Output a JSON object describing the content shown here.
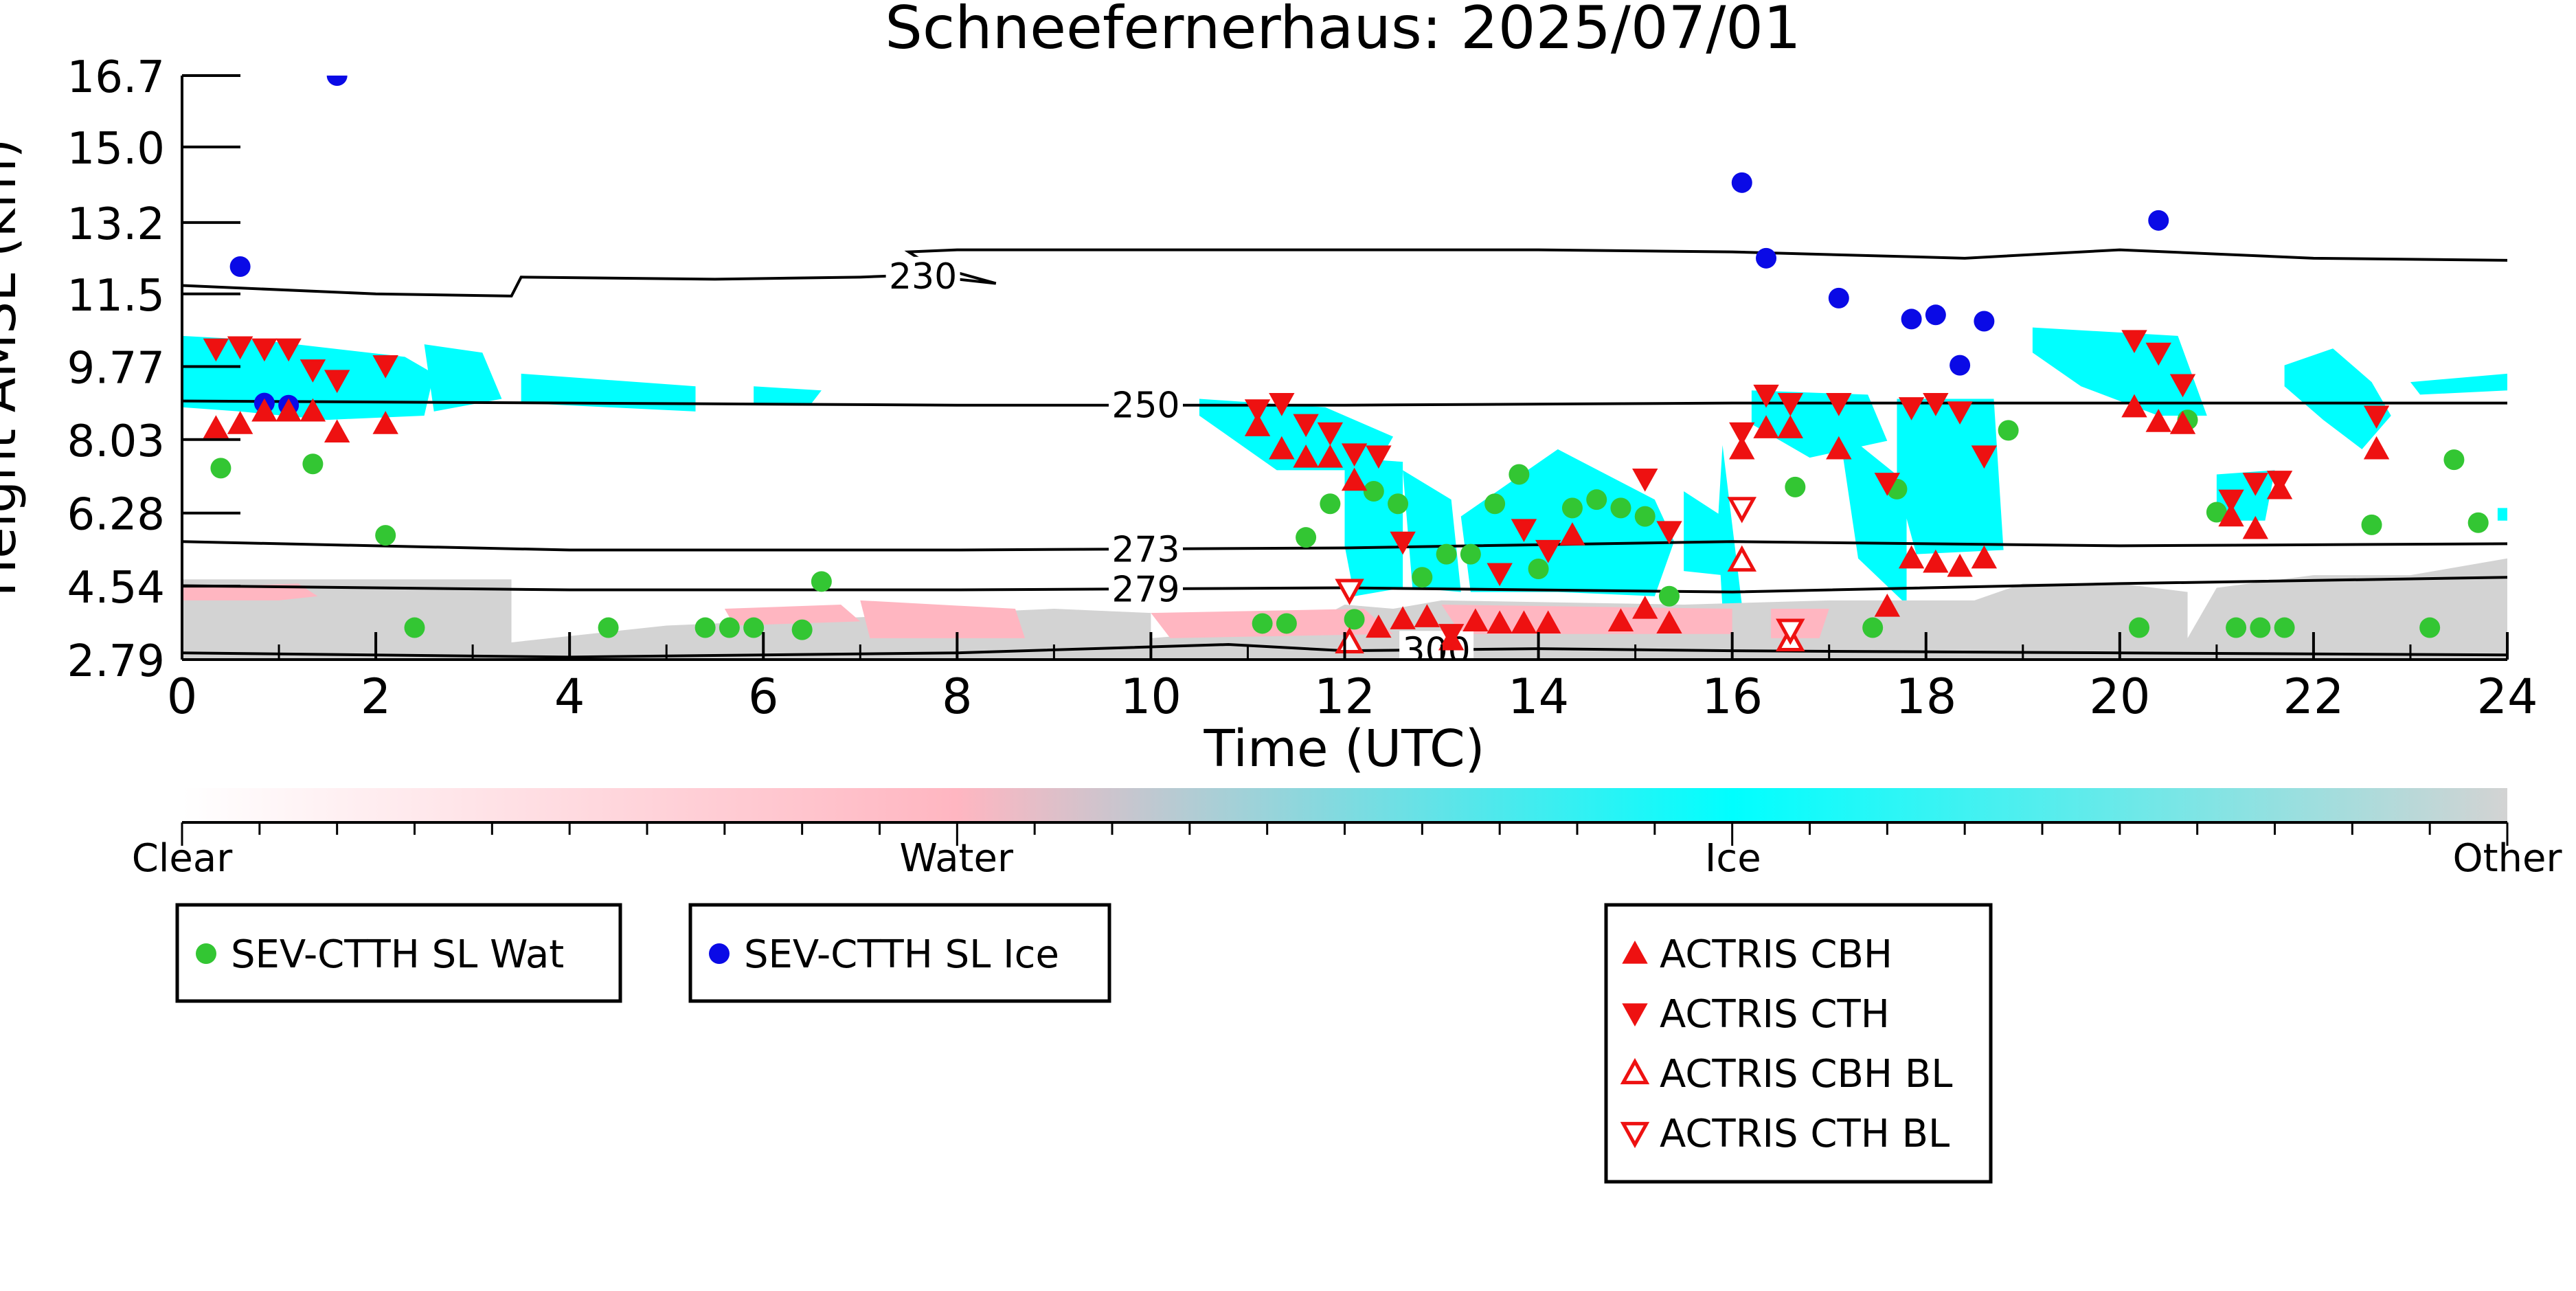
{
  "chart_data": {
    "type": "scatter",
    "title": "Schneefernerhaus: 2025/07/01",
    "xlabel": "Time (UTC)",
    "ylabel": "Height AMSL (km)",
    "xlim": [
      0,
      24
    ],
    "ylim": [
      2.79,
      16.7
    ],
    "x_ticks": [
      "0",
      "2",
      "4",
      "6",
      "8",
      "10",
      "12",
      "14",
      "16",
      "18",
      "20",
      "22",
      "24"
    ],
    "y_ticks": [
      "2.79",
      "4.54",
      "6.28",
      "8.03",
      "9.77",
      "11.5",
      "13.2",
      "15.0",
      "16.7"
    ],
    "grid": false,
    "contours": [
      {
        "label": "230",
        "label_x": 7.3,
        "points": [
          [
            0,
            11.7
          ],
          [
            2,
            11.5
          ],
          [
            3.4,
            11.45
          ],
          [
            3.5,
            11.9
          ],
          [
            5.5,
            11.85
          ],
          [
            7,
            11.9
          ],
          [
            7.6,
            11.95
          ],
          [
            8.4,
            11.75
          ],
          [
            7.7,
            12.2
          ],
          [
            7.5,
            12.5
          ],
          [
            8,
            12.55
          ],
          [
            10,
            12.55
          ],
          [
            12,
            12.55
          ],
          [
            14,
            12.55
          ],
          [
            16,
            12.5
          ],
          [
            18.4,
            12.35
          ],
          [
            20,
            12.55
          ],
          [
            22,
            12.35
          ],
          [
            24,
            12.3
          ]
        ]
      },
      {
        "label": "250",
        "label_x": 9.6,
        "points": [
          [
            0,
            8.95
          ],
          [
            4,
            8.9
          ],
          [
            8,
            8.85
          ],
          [
            12,
            8.85
          ],
          [
            16,
            8.9
          ],
          [
            20,
            8.9
          ],
          [
            24,
            8.9
          ]
        ]
      },
      {
        "label": "273",
        "label_x": 9.6,
        "points": [
          [
            0,
            5.6
          ],
          [
            4,
            5.4
          ],
          [
            8,
            5.4
          ],
          [
            12,
            5.45
          ],
          [
            16,
            5.6
          ],
          [
            20,
            5.5
          ],
          [
            24,
            5.55
          ]
        ]
      },
      {
        "label": "279",
        "label_x": 9.6,
        "points": [
          [
            0,
            4.55
          ],
          [
            4,
            4.45
          ],
          [
            8,
            4.45
          ],
          [
            12,
            4.5
          ],
          [
            16,
            4.4
          ],
          [
            20,
            4.6
          ],
          [
            24,
            4.75
          ]
        ]
      },
      {
        "label": "300",
        "label_x": 12.6,
        "points": [
          [
            0,
            2.95
          ],
          [
            4,
            2.85
          ],
          [
            8,
            2.95
          ],
          [
            10.8,
            3.15
          ],
          [
            12,
            3.0
          ],
          [
            14,
            3.05
          ],
          [
            16,
            3.0
          ],
          [
            20,
            2.95
          ],
          [
            24,
            2.9
          ]
        ]
      }
    ],
    "fill_regions": [
      {
        "category": "Ice",
        "points": [
          [
            0,
            10.5
          ],
          [
            0.8,
            10.4
          ],
          [
            2.3,
            10.0
          ],
          [
            2.6,
            9.6
          ],
          [
            2.5,
            8.6
          ],
          [
            1.5,
            8.5
          ],
          [
            0.6,
            8.7
          ],
          [
            0,
            8.8
          ]
        ]
      },
      {
        "category": "Ice",
        "points": [
          [
            2.5,
            10.3
          ],
          [
            3.1,
            10.1
          ],
          [
            3.3,
            9.0
          ],
          [
            2.6,
            8.7
          ]
        ]
      },
      {
        "category": "Ice",
        "points": [
          [
            3.5,
            9.6
          ],
          [
            5.3,
            9.3
          ],
          [
            5.3,
            8.7
          ],
          [
            3.5,
            8.9
          ]
        ]
      },
      {
        "category": "Ice",
        "points": [
          [
            5.9,
            9.3
          ],
          [
            6.6,
            9.2
          ],
          [
            6.5,
            8.9
          ],
          [
            5.9,
            8.9
          ]
        ]
      },
      {
        "category": "Ice",
        "points": [
          [
            10.5,
            9.0
          ],
          [
            11.8,
            8.8
          ],
          [
            12.5,
            8.1
          ],
          [
            12.3,
            7.3
          ],
          [
            11.3,
            7.3
          ],
          [
            10.5,
            8.6
          ]
        ]
      },
      {
        "category": "Ice",
        "points": [
          [
            12.0,
            7.6
          ],
          [
            12.6,
            7.5
          ],
          [
            12.6,
            4.5
          ],
          [
            12.1,
            4.3
          ],
          [
            12.0,
            5.5
          ]
        ]
      },
      {
        "category": "Ice",
        "points": [
          [
            12.6,
            7.3
          ],
          [
            13.1,
            6.6
          ],
          [
            13.2,
            4.4
          ],
          [
            12.7,
            4.5
          ]
        ]
      },
      {
        "category": "Ice",
        "points": [
          [
            13.2,
            6.2
          ],
          [
            14.2,
            7.8
          ],
          [
            15.2,
            6.6
          ],
          [
            15.4,
            5.6
          ],
          [
            15.2,
            4.3
          ],
          [
            14.2,
            4.4
          ],
          [
            13.3,
            4.4
          ]
        ]
      },
      {
        "category": "Ice",
        "points": [
          [
            15.5,
            6.8
          ],
          [
            15.9,
            6.2
          ],
          [
            15.9,
            4.8
          ],
          [
            15.5,
            4.9
          ]
        ]
      },
      {
        "category": "Ice",
        "points": [
          [
            15.9,
            7.9
          ],
          [
            16.1,
            4.1
          ],
          [
            15.9,
            4.0
          ],
          [
            15.85,
            6.0
          ]
        ]
      },
      {
        "category": "Ice",
        "points": [
          [
            16.2,
            9.2
          ],
          [
            17.4,
            9.1
          ],
          [
            17.6,
            8.0
          ],
          [
            16.8,
            7.6
          ],
          [
            16.2,
            8.4
          ]
        ]
      },
      {
        "category": "Ice",
        "points": [
          [
            17.1,
            8.3
          ],
          [
            17.3,
            5.2
          ],
          [
            17.8,
            4.1
          ],
          [
            17.8,
            7.0
          ]
        ]
      },
      {
        "category": "Ice",
        "points": [
          [
            17.7,
            9.0
          ],
          [
            18.7,
            9.0
          ],
          [
            18.8,
            5.4
          ],
          [
            17.9,
            5.3
          ],
          [
            17.7,
            7.0
          ]
        ]
      },
      {
        "category": "Ice",
        "points": [
          [
            19.1,
            10.7
          ],
          [
            20.6,
            10.5
          ],
          [
            20.9,
            8.6
          ],
          [
            20.4,
            8.6
          ],
          [
            19.6,
            9.3
          ],
          [
            19.1,
            10.1
          ]
        ]
      },
      {
        "category": "Ice",
        "points": [
          [
            21.0,
            7.2
          ],
          [
            21.6,
            7.3
          ],
          [
            21.5,
            6.1
          ],
          [
            21.0,
            6.1
          ]
        ]
      },
      {
        "category": "Ice",
        "points": [
          [
            21.7,
            9.8
          ],
          [
            22.2,
            10.2
          ],
          [
            22.6,
            9.4
          ],
          [
            22.8,
            8.6
          ],
          [
            22.5,
            7.8
          ],
          [
            22.1,
            8.5
          ],
          [
            21.7,
            9.3
          ]
        ]
      },
      {
        "category": "Ice",
        "points": [
          [
            23.0,
            9.4
          ],
          [
            24,
            9.6
          ],
          [
            24,
            9.2
          ],
          [
            23.1,
            9.1
          ]
        ]
      },
      {
        "category": "Ice",
        "points": [
          [
            23.9,
            6.4
          ],
          [
            24,
            6.4
          ],
          [
            24,
            6.1
          ],
          [
            23.9,
            6.1
          ]
        ]
      },
      {
        "category": "Other",
        "points": [
          [
            0,
            4.7
          ],
          [
            3.4,
            4.7
          ],
          [
            3.4,
            3.2
          ],
          [
            5.0,
            3.6
          ],
          [
            9.0,
            4.0
          ],
          [
            10.0,
            3.9
          ],
          [
            10.0,
            3.3
          ],
          [
            11.6,
            3.6
          ],
          [
            12.0,
            4.1
          ],
          [
            12.5,
            4.0
          ],
          [
            13.0,
            4.2
          ],
          [
            15.5,
            4.1
          ],
          [
            17.0,
            4.2
          ],
          [
            18.5,
            4.2
          ],
          [
            19.0,
            4.6
          ],
          [
            20.0,
            4.6
          ],
          [
            20.7,
            4.4
          ],
          [
            20.7,
            3.3
          ],
          [
            21.0,
            4.5
          ],
          [
            22.0,
            4.8
          ],
          [
            23.0,
            4.8
          ],
          [
            24,
            5.2
          ],
          [
            24,
            2.79
          ],
          [
            0,
            2.79
          ]
        ]
      },
      {
        "category": "Water",
        "points": [
          [
            0,
            4.5
          ],
          [
            1.2,
            4.6
          ],
          [
            1.4,
            4.3
          ],
          [
            1.0,
            4.2
          ],
          [
            0,
            4.2
          ]
        ]
      },
      {
        "category": "Water",
        "points": [
          [
            5.6,
            4.0
          ],
          [
            6.8,
            4.1
          ],
          [
            7.0,
            3.7
          ],
          [
            5.7,
            3.6
          ]
        ]
      },
      {
        "category": "Water",
        "points": [
          [
            7.0,
            4.2
          ],
          [
            8.6,
            4.0
          ],
          [
            8.7,
            3.3
          ],
          [
            7.1,
            3.3
          ]
        ]
      },
      {
        "category": "Water",
        "points": [
          [
            10.0,
            3.9
          ],
          [
            12.2,
            4.0
          ],
          [
            12.5,
            3.4
          ],
          [
            10.2,
            3.3
          ]
        ]
      },
      {
        "category": "Water",
        "points": [
          [
            13.0,
            4.1
          ],
          [
            16.0,
            4.0
          ],
          [
            16.0,
            3.4
          ],
          [
            13.2,
            3.4
          ]
        ]
      },
      {
        "category": "Water",
        "points": [
          [
            16.4,
            4.0
          ],
          [
            17.0,
            4.0
          ],
          [
            16.9,
            3.3
          ],
          [
            16.4,
            3.3
          ]
        ]
      }
    ],
    "series": [
      {
        "name": "SEV-CTTH SL Wat",
        "marker": "circle",
        "color": "#33c633",
        "x": [
          0.4,
          1.35,
          2.1,
          2.4,
          4.4,
          5.4,
          5.65,
          5.9,
          6.4,
          6.6,
          11.15,
          11.4,
          11.6,
          11.85,
          12.1,
          12.3,
          12.55,
          12.8,
          13.05,
          13.3,
          13.55,
          13.8,
          14.0,
          14.35,
          14.6,
          14.85,
          15.1,
          15.35,
          16.65,
          17.45,
          17.7,
          18.85,
          20.2,
          20.7,
          21.0,
          21.2,
          21.45,
          21.7,
          22.6,
          23.2,
          23.45,
          23.7
        ],
        "y": [
          7.35,
          7.45,
          5.75,
          3.55,
          3.55,
          3.55,
          3.55,
          3.55,
          3.5,
          4.65,
          3.65,
          3.65,
          5.7,
          6.5,
          3.75,
          6.8,
          6.5,
          4.75,
          5.3,
          5.3,
          6.5,
          7.2,
          4.95,
          6.4,
          6.6,
          6.4,
          6.2,
          4.3,
          6.9,
          3.55,
          6.85,
          8.25,
          3.55,
          8.5,
          6.3,
          3.55,
          3.55,
          3.55,
          6.0,
          3.55,
          7.55,
          6.05
        ]
      },
      {
        "name": "SEV-CTTH SL Ice",
        "marker": "circle",
        "color": "#0a0ae6",
        "x": [
          0.6,
          0.85,
          1.1,
          1.6,
          16.1,
          16.35,
          17.1,
          17.85,
          18.1,
          18.35,
          18.6,
          20.4
        ],
        "y": [
          12.15,
          8.9,
          8.85,
          16.7,
          14.15,
          12.35,
          11.4,
          10.9,
          11.0,
          9.8,
          10.85,
          13.25
        ]
      },
      {
        "name": "ACTRIS CBH",
        "marker": "triangle-up",
        "color": "#ee1111",
        "x": [
          0.35,
          0.6,
          0.85,
          1.1,
          1.35,
          1.6,
          2.1,
          11.1,
          11.35,
          11.6,
          11.85,
          12.1,
          12.35,
          12.6,
          12.85,
          13.1,
          13.35,
          13.6,
          13.85,
          14.1,
          14.35,
          14.85,
          15.1,
          15.35,
          16.1,
          16.35,
          16.6,
          17.1,
          17.6,
          17.85,
          18.1,
          18.35,
          18.6,
          20.15,
          20.4,
          20.65,
          21.15,
          21.4,
          21.65,
          22.65
        ],
        "y": [
          8.3,
          8.4,
          8.7,
          8.7,
          8.7,
          8.2,
          8.4,
          8.35,
          7.8,
          7.6,
          7.6,
          7.05,
          3.55,
          3.75,
          3.8,
          3.25,
          3.7,
          3.65,
          3.65,
          3.65,
          5.75,
          3.7,
          4.0,
          3.65,
          7.8,
          8.3,
          8.3,
          7.8,
          4.05,
          5.2,
          5.1,
          5.0,
          5.2,
          8.8,
          8.45,
          8.4,
          6.2,
          5.9,
          6.85,
          7.8
        ]
      },
      {
        "name": "ACTRIS CTH",
        "marker": "triangle-down",
        "color": "#ee1111",
        "x": [
          0.35,
          0.6,
          0.85,
          1.1,
          1.35,
          1.6,
          2.1,
          11.1,
          11.35,
          11.6,
          11.85,
          12.1,
          12.35,
          12.6,
          13.1,
          13.6,
          13.85,
          14.1,
          15.1,
          15.35,
          16.1,
          16.35,
          16.6,
          17.1,
          17.6,
          17.85,
          18.1,
          18.35,
          18.6,
          20.15,
          20.4,
          20.65,
          21.15,
          21.4,
          21.65,
          22.65
        ],
        "y": [
          10.2,
          10.25,
          10.2,
          10.2,
          9.7,
          9.45,
          9.8,
          8.75,
          8.9,
          8.4,
          8.2,
          7.7,
          7.65,
          5.6,
          3.4,
          4.85,
          5.9,
          5.4,
          7.1,
          5.85,
          8.2,
          9.1,
          8.9,
          8.9,
          7.0,
          8.8,
          8.9,
          8.7,
          7.65,
          10.4,
          10.1,
          9.35,
          6.6,
          7.0,
          7.05,
          8.6
        ]
      },
      {
        "name": "ACTRIS CBH BL",
        "marker": "triangle-up-open",
        "color": "#ee1111",
        "x": [
          12.05,
          16.1,
          16.6
        ],
        "y": [
          3.2,
          5.15,
          3.25
        ]
      },
      {
        "name": "ACTRIS CTH BL",
        "marker": "triangle-down-open",
        "color": "#ee1111",
        "x": [
          12.05,
          16.1,
          16.6
        ],
        "y": [
          4.45,
          6.4,
          3.5
        ]
      }
    ],
    "colorbar": {
      "labels": [
        "Clear",
        "Water",
        "Ice",
        "Other"
      ],
      "positions": [
        0,
        0.333,
        0.667,
        1
      ],
      "colors": [
        "#ffffff",
        "#ffb6c1",
        "#00ffff",
        "#d3d3d3"
      ]
    },
    "colors": {
      "ice": "#00ffff",
      "water": "#ffb6c1",
      "other": "#d3d3d3",
      "clear": "#ffffff"
    }
  }
}
